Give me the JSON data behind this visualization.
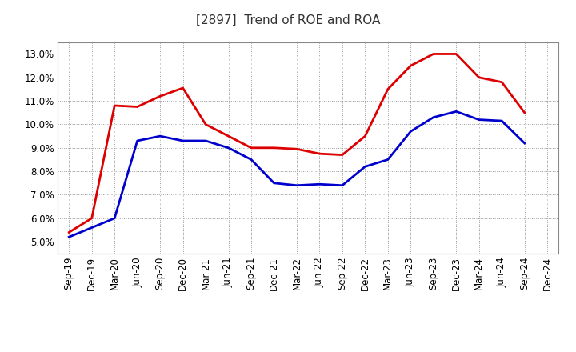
{
  "title": "[2897]  Trend of ROE and ROA",
  "x_labels": [
    "Sep-19",
    "Dec-19",
    "Mar-20",
    "Jun-20",
    "Sep-20",
    "Dec-20",
    "Mar-21",
    "Jun-21",
    "Sep-21",
    "Dec-21",
    "Mar-22",
    "Jun-22",
    "Sep-22",
    "Dec-22",
    "Mar-23",
    "Jun-23",
    "Sep-23",
    "Dec-23",
    "Mar-24",
    "Jun-24",
    "Sep-24",
    "Dec-24"
  ],
  "roe": [
    5.4,
    6.0,
    10.8,
    10.75,
    11.2,
    11.55,
    10.0,
    9.5,
    9.0,
    9.0,
    8.95,
    8.75,
    8.7,
    9.5,
    11.5,
    12.5,
    13.0,
    13.0,
    12.0,
    11.8,
    10.5,
    null
  ],
  "roa": [
    5.2,
    5.6,
    6.0,
    9.3,
    9.5,
    9.3,
    9.3,
    9.0,
    8.5,
    7.5,
    7.4,
    7.45,
    7.4,
    8.2,
    8.5,
    9.7,
    10.3,
    10.55,
    10.2,
    10.15,
    9.2,
    null
  ],
  "roe_color": "#dd0000",
  "roa_color": "#0000cc",
  "ylim": [
    4.5,
    13.5
  ],
  "yticks": [
    5.0,
    6.0,
    7.0,
    8.0,
    9.0,
    10.0,
    11.0,
    12.0,
    13.0
  ],
  "background_color": "#ffffff",
  "grid_color": "#999999",
  "title_fontsize": 11,
  "axis_fontsize": 8.5,
  "legend_fontsize": 10,
  "line_width": 2.0
}
